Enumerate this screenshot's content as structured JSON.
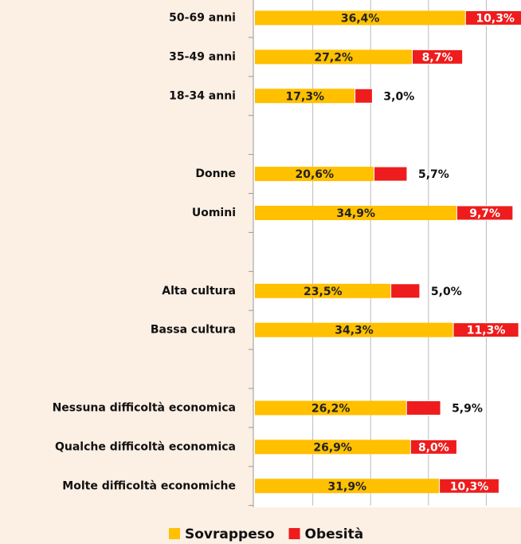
{
  "chart_data": {
    "type": "stacked-bar-horizontal",
    "categories": [
      "50-69 anni",
      "35-49 anni",
      "18-34 anni",
      null,
      "Donne",
      "Uomini",
      null,
      "Alta cultura",
      "Bassa cultura",
      null,
      "Nessuna difficoltà economica",
      "Qualche difficoltà economica",
      "Molte difficoltà economiche"
    ],
    "series": [
      {
        "name": "Sovrappeso",
        "color": "#ffc000",
        "values": [
          36.4,
          27.2,
          17.3,
          null,
          20.6,
          34.9,
          null,
          23.5,
          34.3,
          null,
          26.2,
          26.9,
          31.9
        ],
        "value_labels": [
          "36,4%",
          "27,2%",
          "17,3%",
          null,
          "20,6%",
          "34,9%",
          null,
          "23,5%",
          "34,3%",
          null,
          "26,2%",
          "26,9%",
          "31,9%"
        ]
      },
      {
        "name": "Obesità",
        "color": "#ee1c1c",
        "values": [
          10.3,
          8.7,
          3.0,
          null,
          5.7,
          9.7,
          null,
          5.0,
          11.3,
          null,
          5.9,
          8.0,
          10.3
        ],
        "value_labels": [
          "10,3%",
          "8,7%",
          "3,0%",
          null,
          "5,7%",
          "9,7%",
          null,
          "5,0%",
          "11,3%",
          null,
          "5,9%",
          "8,0%",
          "10,3%"
        ]
      }
    ],
    "xlim": [
      0,
      46
    ],
    "xticks": [
      0,
      10,
      20,
      30,
      40
    ],
    "grid": true,
    "legend": "bottom"
  }
}
